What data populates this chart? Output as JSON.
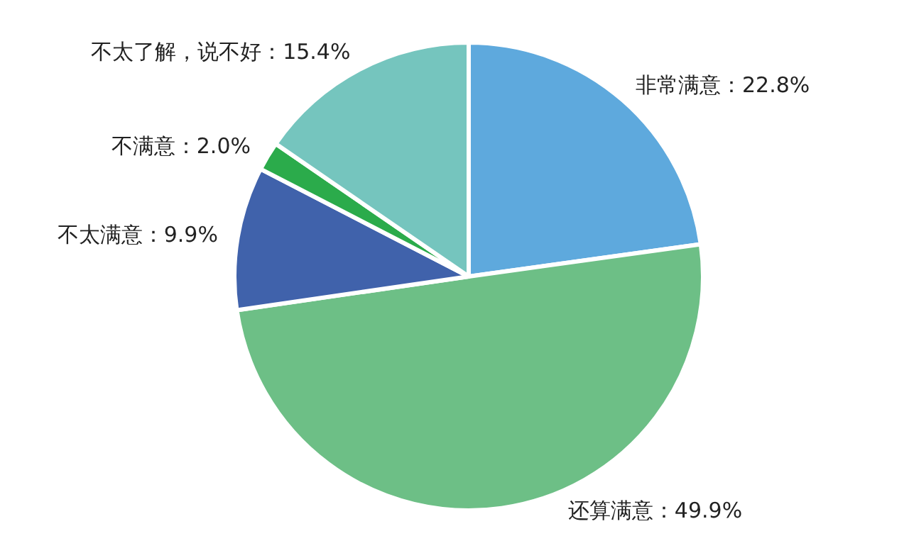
{
  "chart_data": {
    "type": "pie",
    "categories": [
      "非常满意",
      "还算满意",
      "不太满意",
      "不满意",
      "不太了解，说不好"
    ],
    "values": [
      22.8,
      49.9,
      9.9,
      2.0,
      15.4
    ],
    "colors": [
      "#5ea9dd",
      "#6dbf86",
      "#4062ab",
      "#2bab4b",
      "#75c5be"
    ],
    "value_labels": [
      "22.8%",
      "49.9%",
      "9.9%",
      "2.0%",
      "15.4%"
    ]
  }
}
